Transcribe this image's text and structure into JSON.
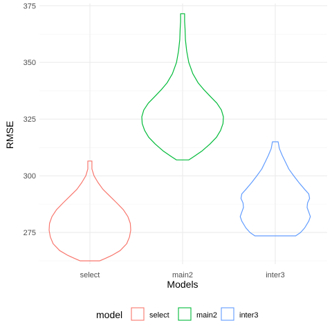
{
  "chart_data": {
    "type": "violin",
    "xlabel": "Models",
    "ylabel": "RMSE",
    "ylim": [
      261,
      376
    ],
    "yticks": [
      275,
      300,
      325,
      350,
      375
    ],
    "categories": [
      "select",
      "main2",
      "inter3"
    ],
    "grid": true,
    "legend": {
      "title": "model",
      "position": "bottom"
    },
    "series": [
      {
        "name": "select",
        "color": "#F8766D",
        "min": 262.5,
        "max": 306.5,
        "profile": [
          [
            262.5,
            0.24
          ],
          [
            263.5,
            0.37
          ],
          [
            265,
            0.55
          ],
          [
            267,
            0.74
          ],
          [
            270,
            0.9
          ],
          [
            273,
            0.97
          ],
          [
            276,
            1.0
          ],
          [
            279,
            0.99
          ],
          [
            282,
            0.93
          ],
          [
            285,
            0.82
          ],
          [
            288,
            0.66
          ],
          [
            291,
            0.49
          ],
          [
            294,
            0.32
          ],
          [
            297,
            0.2
          ],
          [
            300,
            0.1
          ],
          [
            303,
            0.05
          ],
          [
            306.5,
            0.05
          ]
        ]
      },
      {
        "name": "main2",
        "color": "#00BA38",
        "min": 307,
        "max": 371.5,
        "profile": [
          [
            307,
            0.15
          ],
          [
            308.5,
            0.28
          ],
          [
            311,
            0.48
          ],
          [
            314,
            0.67
          ],
          [
            317,
            0.83
          ],
          [
            320,
            0.93
          ],
          [
            323,
            0.99
          ],
          [
            326,
            1.0
          ],
          [
            329,
            0.95
          ],
          [
            332,
            0.84
          ],
          [
            335,
            0.68
          ],
          [
            338,
            0.52
          ],
          [
            341,
            0.38
          ],
          [
            345,
            0.25
          ],
          [
            350,
            0.15
          ],
          [
            355,
            0.1
          ],
          [
            360,
            0.07
          ],
          [
            365,
            0.06
          ],
          [
            368,
            0.05
          ],
          [
            371.5,
            0.05
          ]
        ]
      },
      {
        "name": "inter3",
        "color": "#619CFF",
        "min": 273.5,
        "max": 315,
        "profile": [
          [
            273.5,
            0.5
          ],
          [
            275,
            0.62
          ],
          [
            277,
            0.72
          ],
          [
            280,
            0.82
          ],
          [
            282,
            0.86
          ],
          [
            284,
            0.82
          ],
          [
            286,
            0.78
          ],
          [
            288,
            0.79
          ],
          [
            290,
            0.84
          ],
          [
            292,
            0.82
          ],
          [
            294,
            0.72
          ],
          [
            297,
            0.58
          ],
          [
            300,
            0.45
          ],
          [
            303,
            0.33
          ],
          [
            306,
            0.25
          ],
          [
            309,
            0.17
          ],
          [
            312,
            0.1
          ],
          [
            315,
            0.07
          ]
        ]
      }
    ]
  }
}
